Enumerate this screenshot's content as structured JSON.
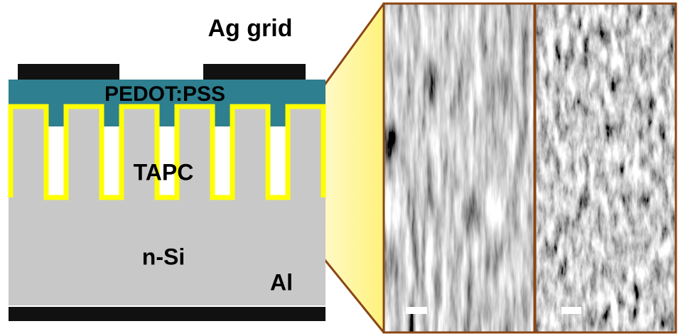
{
  "labels": {
    "ag_grid": "Ag grid",
    "pedot": "PEDOT:PSS",
    "tapc": "TAPC",
    "nsi": "n-Si",
    "al": "Al"
  }
}
